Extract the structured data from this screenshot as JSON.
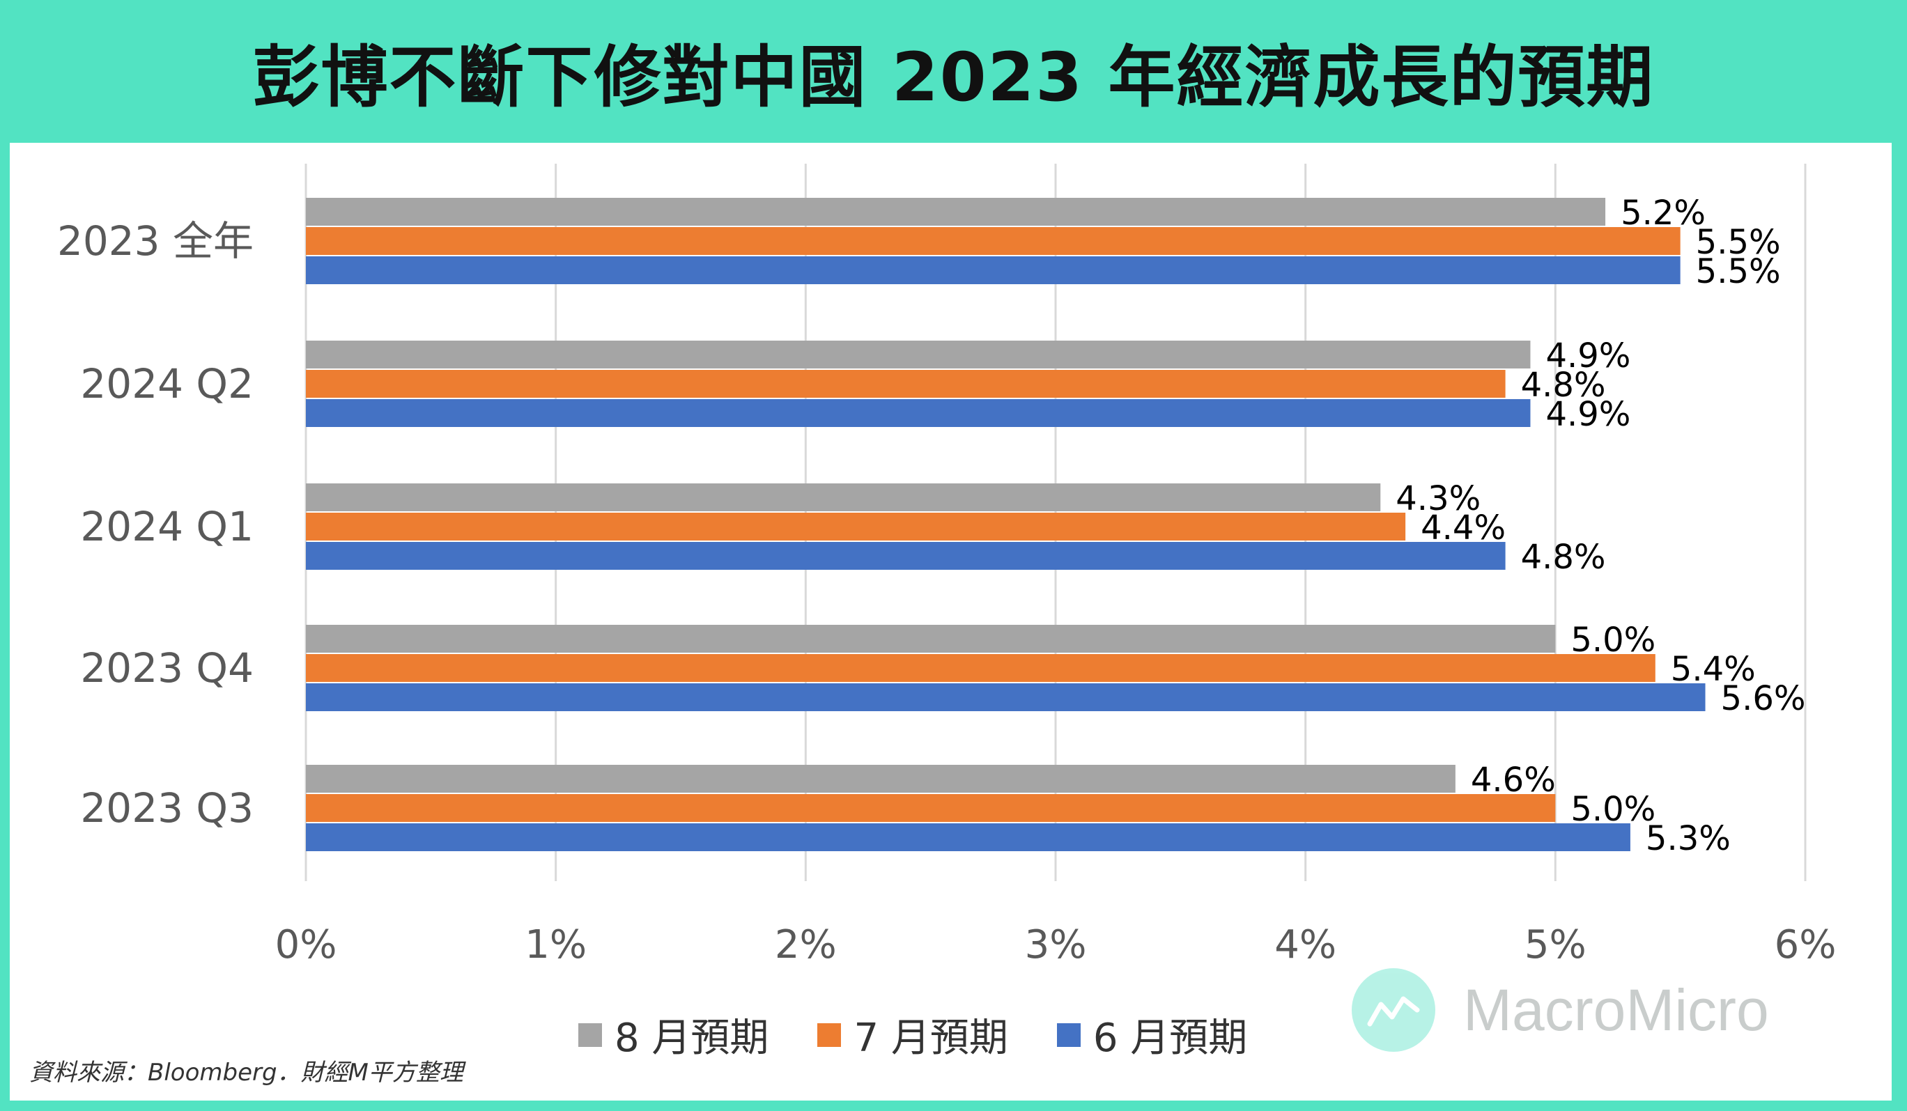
{
  "title": "彭博不斷下修對中國 2023 年經濟成長的預期",
  "source": "資料來源：Bloomberg．財經M平方整理",
  "watermark": {
    "text": "MacroMicro",
    "icon": "chart-line-icon"
  },
  "colors": {
    "aug": "#a5a5a5",
    "jul": "#ed7d31",
    "jun": "#4472c4",
    "background": "#52e3c2"
  },
  "chart_data": {
    "type": "bar",
    "orientation": "horizontal",
    "categories": [
      "2023 全年",
      "2024 Q2",
      "2024 Q1",
      "2023 Q4",
      "2023 Q3"
    ],
    "series": [
      {
        "name": "8 月預期",
        "values": [
          5.2,
          4.9,
          4.3,
          5.0,
          4.6
        ],
        "labels": [
          "5.2%",
          "4.9%",
          "4.3%",
          "5.0%",
          "4.6%"
        ],
        "color": "#a5a5a5"
      },
      {
        "name": "7 月預期",
        "values": [
          5.5,
          4.8,
          4.4,
          5.4,
          5.0
        ],
        "labels": [
          "5.5%",
          "4.8%",
          "4.4%",
          "5.4%",
          "5.0%"
        ],
        "color": "#ed7d31"
      },
      {
        "name": "6 月預期",
        "values": [
          5.5,
          4.9,
          4.8,
          5.6,
          5.3
        ],
        "labels": [
          "5.5%",
          "4.9%",
          "4.8%",
          "5.6%",
          "5.3%"
        ],
        "color": "#4472c4"
      }
    ],
    "xlim": [
      0,
      6
    ],
    "xticks": [
      "0%",
      "1%",
      "2%",
      "3%",
      "4%",
      "5%",
      "6%"
    ],
    "grid": true,
    "legend": "bottom"
  }
}
